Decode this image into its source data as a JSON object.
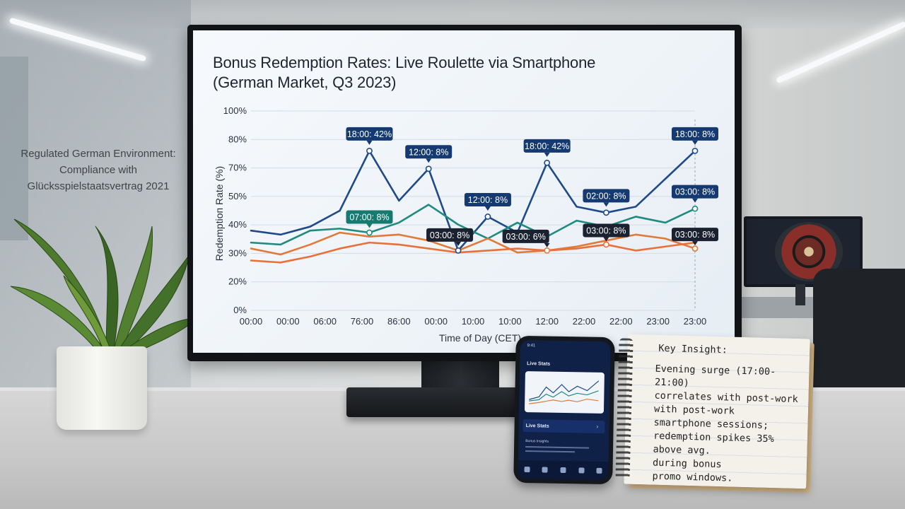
{
  "chart_data": {
    "type": "line",
    "title": "Bonus Redemption Rates: Live Roulette via Smartphone\n(German Market, Q3 2023)",
    "xlabel": "Time of Day (CET)",
    "ylabel": "Redemptioп Rate (%)",
    "ylim": [
      0,
      100
    ],
    "yticks": [
      "0%",
      "20%",
      "30%",
      "40%",
      "50%",
      "70%",
      "80%",
      "100%"
    ],
    "xticks": [
      "00:00",
      "00:00",
      "06:00",
      "76:00",
      "86:00",
      "00:00",
      "10:00",
      "10:00",
      "12:00",
      "22:00",
      "22:00",
      "23:00",
      "23:00"
    ],
    "grid": true,
    "legend": "none",
    "series": [
      {
        "color": "#1f4a8a",
        "values": [
          40,
          38,
          42,
          50,
          80,
          55,
          71,
          30,
          47,
          39,
          74,
          52,
          49,
          52,
          66,
          80
        ]
      },
      {
        "color": "#1f8b80",
        "values": [
          34,
          33,
          40,
          41,
          39,
          44,
          53,
          43,
          36,
          44,
          37,
          45,
          42,
          47,
          44,
          51
        ]
      },
      {
        "color": "#e07a3a",
        "values": [
          31,
          28,
          33,
          39,
          37,
          38,
          35,
          30,
          36,
          29,
          30,
          32,
          35,
          38,
          36,
          31
        ]
      },
      {
        "color": "#e9703a",
        "values": [
          25,
          24,
          27,
          31,
          34,
          33,
          31,
          29,
          30,
          31,
          30,
          31,
          33,
          30,
          32,
          34
        ]
      }
    ],
    "annotations": [
      {
        "label": "18:00: 42%",
        "style": "navy"
      },
      {
        "label": "12:00: 8%",
        "style": "navy"
      },
      {
        "label": "12:00: 8%",
        "style": "navy"
      },
      {
        "label": "18:00: 42%",
        "style": "navy"
      },
      {
        "label": "02:00: 8%",
        "style": "navy"
      },
      {
        "label": "18:00: 8%",
        "style": "navy"
      },
      {
        "label": "03:00: 8%",
        "style": "navy"
      },
      {
        "label": "07:00: 8%",
        "style": "teal"
      },
      {
        "label": "03:00: 8%",
        "style": "dark"
      },
      {
        "label": "03:00: 6%",
        "style": "dark"
      },
      {
        "label": "03:00: 8%",
        "style": "dark"
      },
      {
        "label": "03:00: 8%",
        "style": "dark"
      }
    ]
  },
  "background": {
    "glass_text": [
      "Regulated German Environment:",
      "Compliance with",
      "Glücksspielstaatsvertrag 2021"
    ]
  },
  "phone": {
    "status": "9:41",
    "title": "Live Stats",
    "section": "Live Stats",
    "sub": "Bonus Insights"
  },
  "notebook": {
    "title": "Key Insight:",
    "lines": [
      "Evening surge (17:00-21:00)",
      "correlates with post-work",
      "with post-work",
      "smartphone sessions;",
      "redemption spikes 35%",
      "above avg.",
      "during bonus",
      "promo windows."
    ]
  },
  "colors": {
    "navy": "#1f4a8a",
    "teal": "#1f8b80",
    "orange": "#e07a3a",
    "screen_bg": "#f2f6fa"
  }
}
